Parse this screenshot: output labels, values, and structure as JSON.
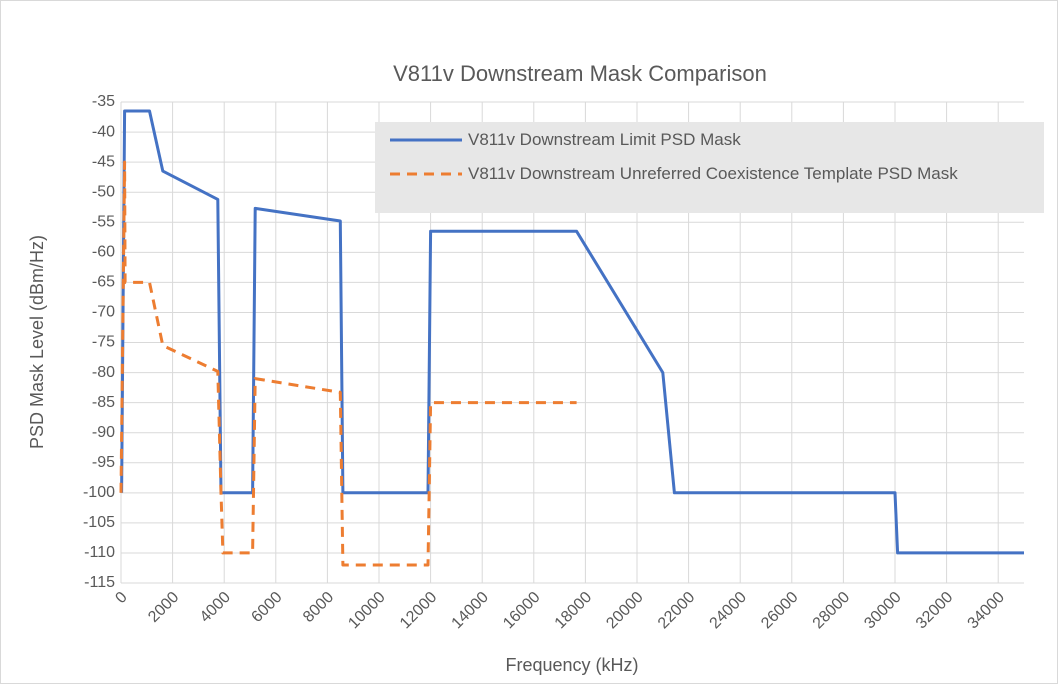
{
  "chart_data": {
    "type": "line",
    "title": "V811v Downstream Mask Comparison",
    "x_label": "Frequency (kHz)",
    "y_label": "PSD Mask Level (dBm/Hz)",
    "xlim": [
      0,
      35000
    ],
    "xticks": [
      0,
      2000,
      4000,
      6000,
      8000,
      10000,
      12000,
      14000,
      16000,
      18000,
      20000,
      22000,
      24000,
      26000,
      28000,
      30000,
      32000,
      34000
    ],
    "ylim": [
      -115,
      -35
    ],
    "yticks": [
      -35,
      -40,
      -45,
      -50,
      -55,
      -60,
      -65,
      -70,
      -75,
      -80,
      -85,
      -90,
      -95,
      -100,
      -105,
      -110,
      -115
    ],
    "grid": true,
    "legend": "top-right",
    "series": [
      {
        "name": "V811v Downstream Limit PSD Mask",
        "color": "#4472c4",
        "dash": false,
        "x": [
          25,
          138,
          1104,
          1622,
          3750,
          3875,
          5100,
          5200,
          8500,
          8600,
          11900,
          12000,
          17660,
          21000,
          21450,
          30000,
          30100,
          35000
        ],
        "values": [
          -100,
          -36.5,
          -36.5,
          -46.5,
          -51.2,
          -100,
          -100,
          -52.7,
          -54.8,
          -100,
          -100,
          -56.5,
          -56.5,
          -80,
          -100,
          -100,
          -110,
          -110
        ]
      },
      {
        "name": "V811v Downstream Unreferred Coexistence Template PSD Mask",
        "color": "#ed7d31",
        "dash": true,
        "x": [
          0,
          138,
          160,
          1104,
          1622,
          3750,
          3875,
          3950,
          5100,
          5200,
          8500,
          8560,
          8600,
          11900,
          12000,
          17660
        ],
        "values": [
          -100,
          -45,
          -65,
          -65,
          -75.5,
          -79.8,
          -100,
          -110,
          -110,
          -81,
          -83.3,
          -100,
          -112,
          -112,
          -85,
          -85
        ]
      }
    ]
  }
}
